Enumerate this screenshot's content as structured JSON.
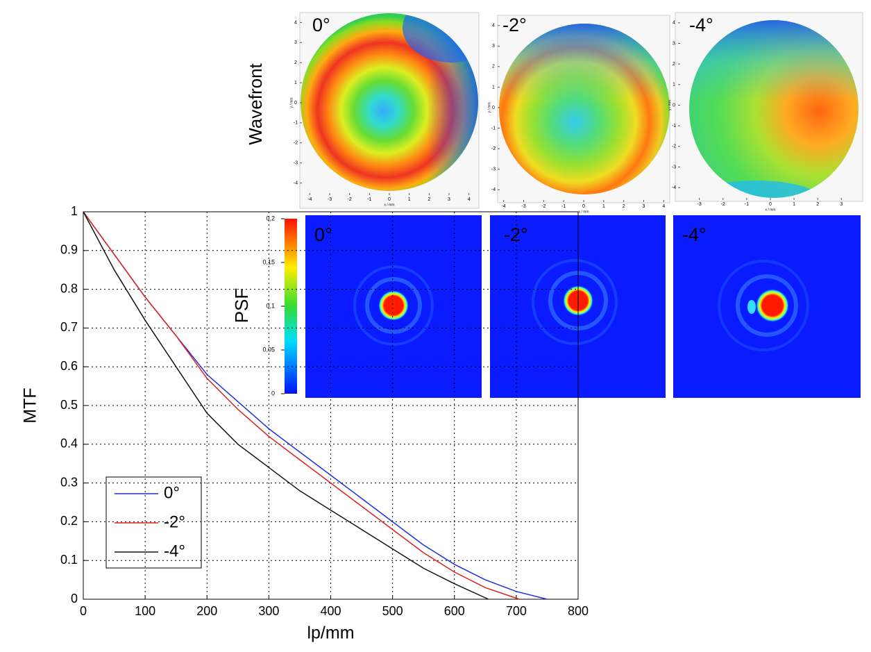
{
  "chart_data": [
    {
      "type": "line",
      "xlabel": "lp/mm",
      "ylabel": "MTF",
      "xlim": [
        0,
        800
      ],
      "xticks": [
        0,
        100,
        200,
        300,
        400,
        500,
        600,
        700,
        800
      ],
      "ylim": [
        0,
        1
      ],
      "yticks": [
        0,
        0.1,
        0.2,
        0.3,
        0.4,
        0.5,
        0.6,
        0.7,
        0.8,
        0.9,
        1
      ],
      "grid": true,
      "legend": "lower left",
      "series": [
        {
          "name": "0°",
          "color": "#1f2fd8",
          "x": [
            0,
            50,
            100,
            150,
            200,
            250,
            300,
            350,
            400,
            450,
            500,
            550,
            600,
            650,
            700,
            750
          ],
          "values": [
            1,
            0.89,
            0.78,
            0.68,
            0.58,
            0.51,
            0.44,
            0.38,
            0.32,
            0.26,
            0.2,
            0.14,
            0.09,
            0.05,
            0.02,
            0
          ]
        },
        {
          "name": "-2°",
          "color": "#e0201c",
          "x": [
            0,
            50,
            100,
            150,
            200,
            250,
            300,
            350,
            400,
            450,
            500,
            550,
            600,
            650,
            705
          ],
          "values": [
            1,
            0.89,
            0.78,
            0.68,
            0.57,
            0.49,
            0.42,
            0.36,
            0.3,
            0.24,
            0.18,
            0.12,
            0.07,
            0.03,
            0
          ]
        },
        {
          "name": "-4°",
          "color": "#111111",
          "x": [
            0,
            50,
            100,
            150,
            200,
            250,
            300,
            350,
            400,
            450,
            500,
            550,
            600,
            655
          ],
          "values": [
            1,
            0.85,
            0.72,
            0.6,
            0.48,
            0.4,
            0.34,
            0.28,
            0.23,
            0.18,
            0.13,
            0.08,
            0.04,
            0
          ]
        }
      ]
    },
    {
      "type": "heatmap",
      "label": "Wavefront",
      "xlabel": "x / mm",
      "ylabel": "y / mm",
      "panels": [
        {
          "title": "0°",
          "xlim": [
            -4.5,
            4.5
          ],
          "ylim": [
            -4.5,
            4.5
          ],
          "xticks": [
            -4,
            -3,
            -2,
            -1,
            0,
            1,
            2,
            3,
            4
          ],
          "yticks": [
            -4,
            -3,
            -2,
            -1,
            0,
            1,
            2,
            3,
            4
          ]
        },
        {
          "title": "-2°",
          "xlim": [
            -4.3,
            4.3
          ],
          "ylim": [
            -4.5,
            4.5
          ],
          "xticks": [
            -4,
            -3,
            -2,
            -1,
            0,
            1,
            2,
            3,
            4
          ],
          "yticks": [
            -4,
            -3,
            -2,
            -1,
            0,
            1,
            2,
            3,
            4
          ]
        },
        {
          "title": "-4°",
          "xlim": [
            -3.9,
            3.9
          ],
          "ylim": [
            -4.5,
            4.5
          ],
          "xticks": [
            -3,
            -2,
            -1,
            0,
            1,
            2,
            3
          ],
          "yticks": [
            -4,
            -3,
            -2,
            -1,
            0,
            1,
            2,
            3,
            4
          ]
        }
      ]
    },
    {
      "type": "heatmap",
      "label": "PSF",
      "panels": [
        {
          "title": "0°"
        },
        {
          "title": "-2°"
        },
        {
          "title": "-4°"
        }
      ],
      "colorbar": {
        "ylim": [
          0,
          0.2
        ],
        "yticks": [
          {
            "value": 0,
            "label": "0"
          },
          {
            "value": 0.05,
            "label": "0,05"
          },
          {
            "value": 0.1,
            "label": "0,1"
          },
          {
            "value": 0.15,
            "label": "0,15"
          },
          {
            "value": 0.2,
            "label": "0,2"
          }
        ]
      }
    }
  ]
}
